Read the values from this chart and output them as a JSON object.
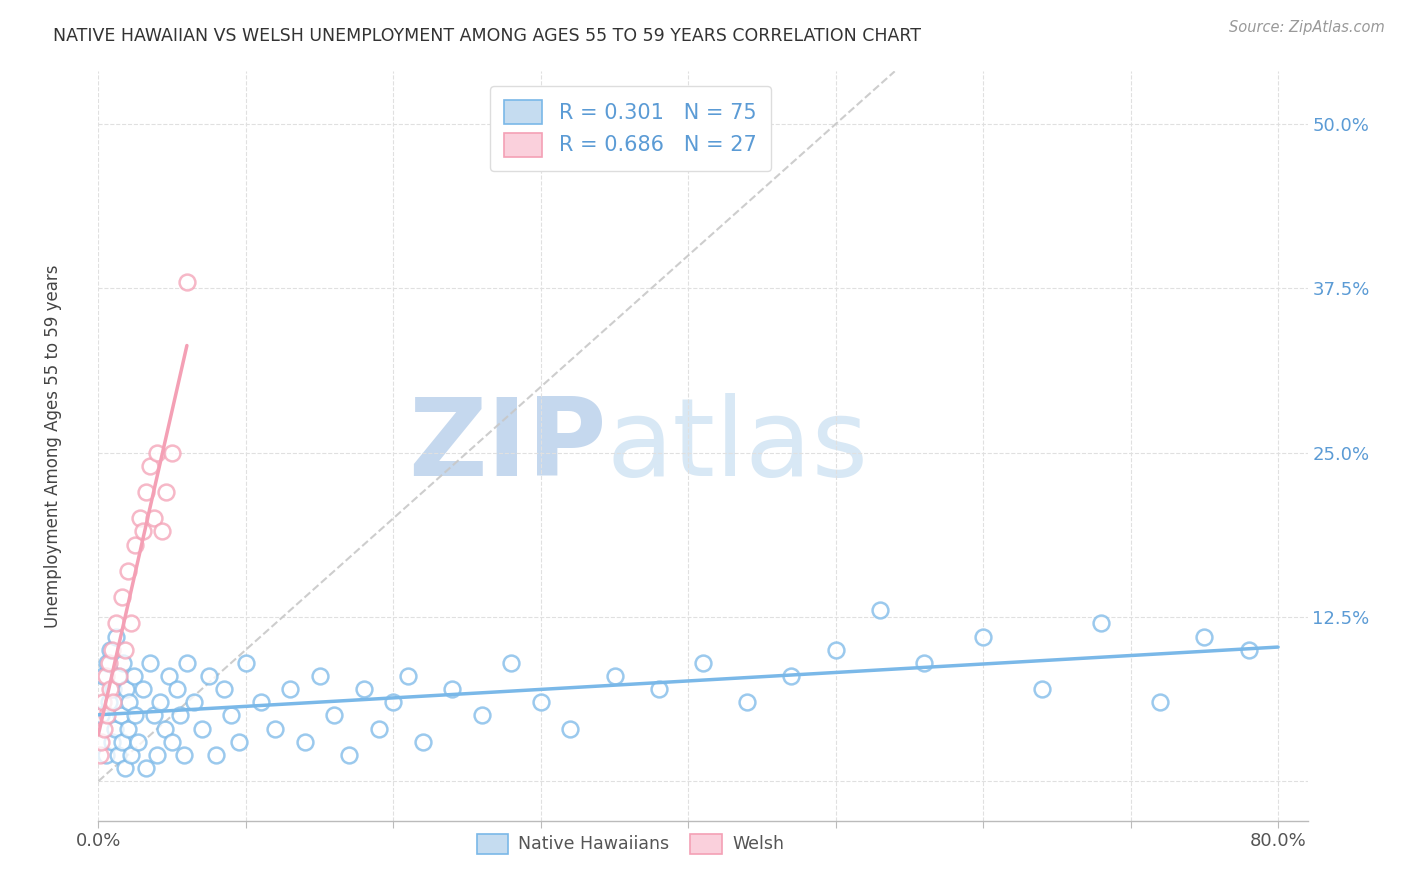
{
  "title": "NATIVE HAWAIIAN VS WELSH UNEMPLOYMENT AMONG AGES 55 TO 59 YEARS CORRELATION CHART",
  "source": "Source: ZipAtlas.com",
  "ylabel": "Unemployment Among Ages 55 to 59 years",
  "xlim": [
    0.0,
    0.82
  ],
  "ylim": [
    -0.03,
    0.54
  ],
  "xticks": [
    0.0,
    0.1,
    0.2,
    0.3,
    0.4,
    0.5,
    0.6,
    0.7,
    0.8
  ],
  "xticklabels": [
    "0.0%",
    "",
    "",
    "",
    "",
    "",
    "",
    "",
    "80.0%"
  ],
  "yticks": [
    0.0,
    0.125,
    0.25,
    0.375,
    0.5
  ],
  "yticklabels": [
    "",
    "12.5%",
    "25.0%",
    "37.5%",
    "50.0%"
  ],
  "r_hawaiian": 0.301,
  "n_hawaiian": 75,
  "r_welsh": 0.686,
  "n_welsh": 27,
  "color_hawaiian": "#7ab8e8",
  "color_welsh": "#f4a0b5",
  "background_color": "#ffffff",
  "grid_color": "#e0e0e0",
  "hawaiian_x": [
    0.002,
    0.003,
    0.005,
    0.006,
    0.007,
    0.008,
    0.009,
    0.01,
    0.011,
    0.012,
    0.013,
    0.014,
    0.015,
    0.016,
    0.017,
    0.018,
    0.019,
    0.02,
    0.021,
    0.022,
    0.024,
    0.025,
    0.027,
    0.03,
    0.032,
    0.035,
    0.038,
    0.04,
    0.042,
    0.045,
    0.048,
    0.05,
    0.053,
    0.055,
    0.058,
    0.06,
    0.065,
    0.07,
    0.075,
    0.08,
    0.085,
    0.09,
    0.095,
    0.1,
    0.11,
    0.12,
    0.13,
    0.14,
    0.15,
    0.16,
    0.17,
    0.18,
    0.19,
    0.2,
    0.21,
    0.22,
    0.24,
    0.26,
    0.28,
    0.3,
    0.32,
    0.35,
    0.38,
    0.41,
    0.44,
    0.47,
    0.5,
    0.53,
    0.56,
    0.6,
    0.64,
    0.68,
    0.72,
    0.75,
    0.78
  ],
  "hawaiian_y": [
    0.05,
    0.08,
    0.02,
    0.09,
    0.06,
    0.1,
    0.03,
    0.07,
    0.04,
    0.11,
    0.02,
    0.08,
    0.05,
    0.03,
    0.09,
    0.01,
    0.07,
    0.04,
    0.06,
    0.02,
    0.08,
    0.05,
    0.03,
    0.07,
    0.01,
    0.09,
    0.05,
    0.02,
    0.06,
    0.04,
    0.08,
    0.03,
    0.07,
    0.05,
    0.02,
    0.09,
    0.06,
    0.04,
    0.08,
    0.02,
    0.07,
    0.05,
    0.03,
    0.09,
    0.06,
    0.04,
    0.07,
    0.03,
    0.08,
    0.05,
    0.02,
    0.07,
    0.04,
    0.06,
    0.08,
    0.03,
    0.07,
    0.05,
    0.09,
    0.06,
    0.04,
    0.08,
    0.07,
    0.09,
    0.06,
    0.08,
    0.1,
    0.13,
    0.09,
    0.11,
    0.07,
    0.12,
    0.06,
    0.11,
    0.1
  ],
  "welsh_x": [
    0.001,
    0.002,
    0.003,
    0.004,
    0.005,
    0.006,
    0.007,
    0.008,
    0.009,
    0.01,
    0.012,
    0.014,
    0.016,
    0.018,
    0.02,
    0.022,
    0.025,
    0.028,
    0.03,
    0.032,
    0.035,
    0.038,
    0.04,
    0.043,
    0.046,
    0.05,
    0.06
  ],
  "welsh_y": [
    0.02,
    0.03,
    0.06,
    0.04,
    0.08,
    0.05,
    0.09,
    0.07,
    0.1,
    0.06,
    0.12,
    0.08,
    0.14,
    0.1,
    0.16,
    0.12,
    0.18,
    0.2,
    0.19,
    0.22,
    0.24,
    0.2,
    0.25,
    0.19,
    0.22,
    0.25,
    0.38
  ]
}
